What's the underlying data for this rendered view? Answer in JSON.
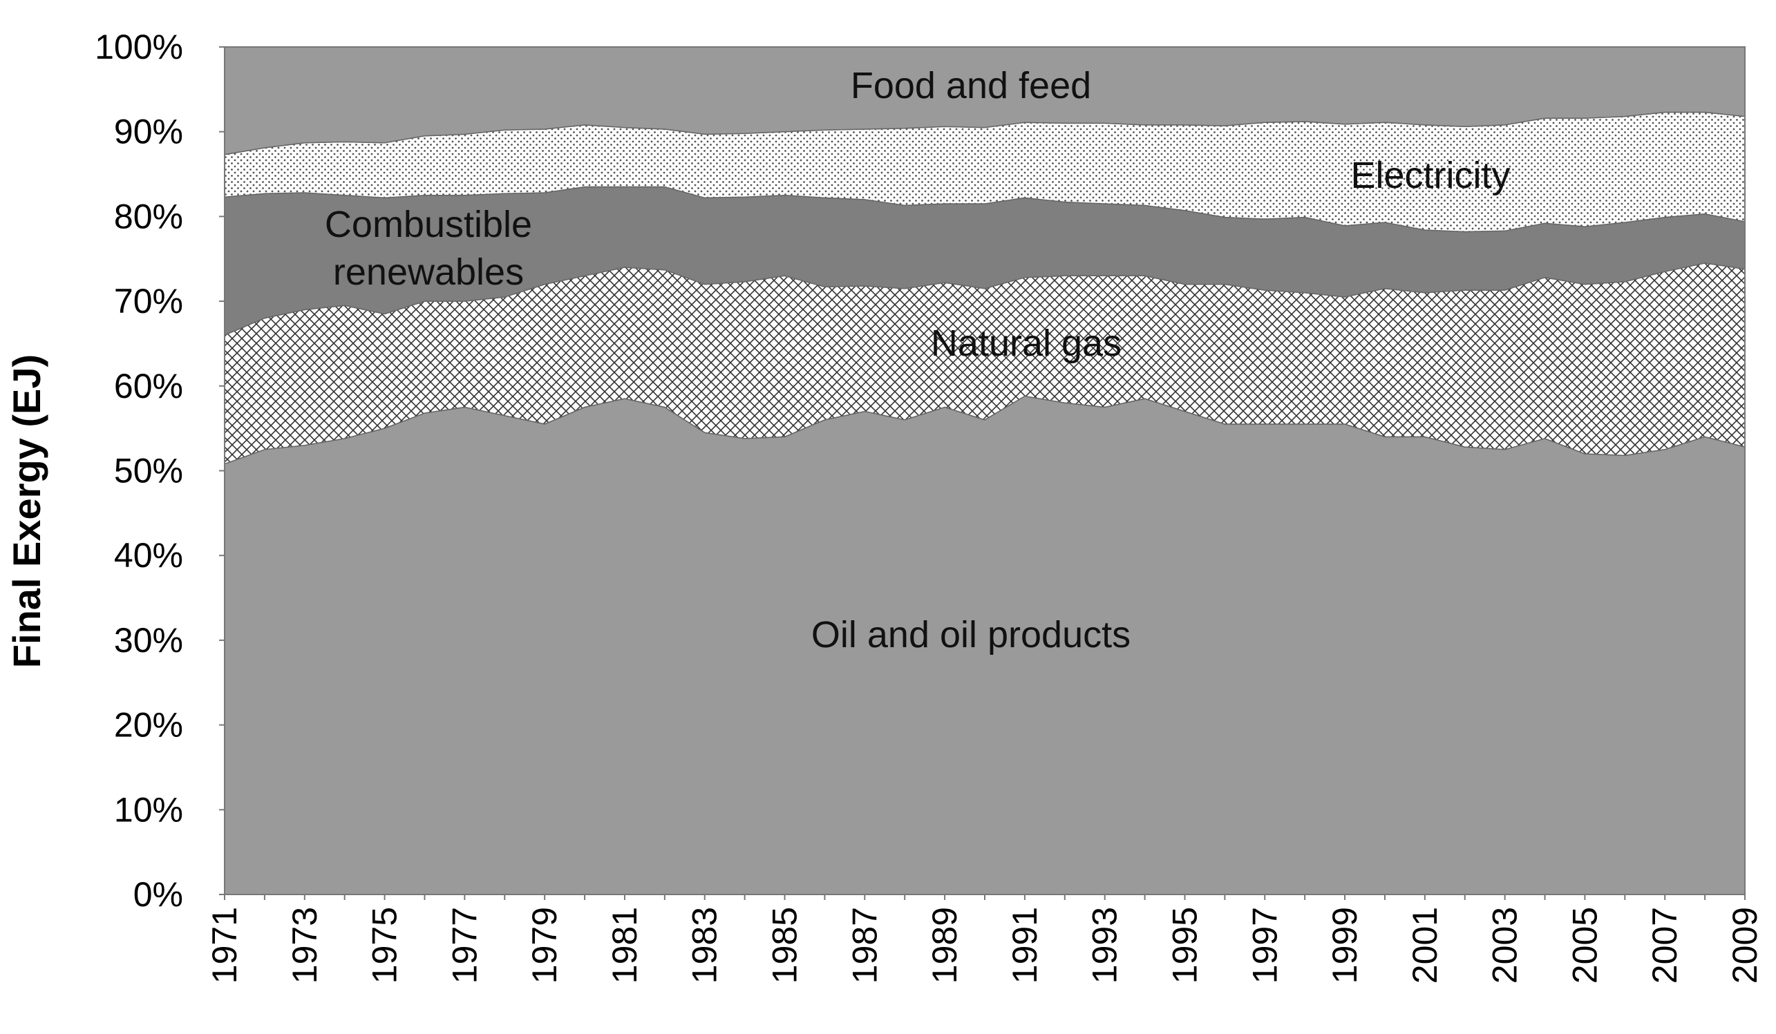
{
  "chart_data": {
    "type": "area",
    "stacked": true,
    "percent": true,
    "title": "",
    "xlabel": "",
    "ylabel": "Final Exergy (EJ)",
    "ylim": [
      0,
      100
    ],
    "yticks": [
      "0%",
      "10%",
      "20%",
      "30%",
      "40%",
      "50%",
      "60%",
      "70%",
      "80%",
      "90%",
      "100%"
    ],
    "x": [
      1971,
      1972,
      1973,
      1974,
      1975,
      1976,
      1977,
      1978,
      1979,
      1980,
      1981,
      1982,
      1983,
      1984,
      1985,
      1986,
      1987,
      1988,
      1989,
      1990,
      1991,
      1992,
      1993,
      1994,
      1995,
      1996,
      1997,
      1998,
      1999,
      2000,
      2001,
      2002,
      2003,
      2004,
      2005,
      2006,
      2007,
      2008,
      2009
    ],
    "xticks": [
      "1971",
      "1973",
      "1975",
      "1977",
      "1979",
      "1981",
      "1983",
      "1985",
      "1987",
      "1989",
      "1991",
      "1993",
      "1995",
      "1997",
      "1999",
      "2001",
      "2003",
      "2005",
      "2007",
      "2009"
    ],
    "series": [
      {
        "name": "Oil and oil products",
        "color": "#9a9a9a",
        "pattern": "solid",
        "label": "Oil and oil products",
        "values": [
          50.8,
          52.5,
          53.0,
          53.8,
          55.0,
          56.8,
          57.5,
          56.5,
          55.5,
          57.5,
          58.5,
          57.5,
          54.5,
          53.8,
          54.0,
          56.0,
          57.0,
          56.0,
          57.5,
          56.0,
          58.8,
          58.0,
          57.5,
          58.5,
          57.0,
          55.5,
          55.5,
          55.5,
          55.5,
          54.0,
          54.0,
          52.8,
          52.5,
          53.8,
          52.0,
          51.8,
          52.5,
          54.0,
          52.8
        ]
      },
      {
        "name": "Natural gas",
        "color": "#ffffff",
        "pattern": "crosshatch",
        "label": "Natural gas",
        "values": [
          15.2,
          15.5,
          16.0,
          15.7,
          13.5,
          13.2,
          12.5,
          14.0,
          16.5,
          15.5,
          15.5,
          16.2,
          17.5,
          18.5,
          19.0,
          15.7,
          14.8,
          15.5,
          14.7,
          15.5,
          14.0,
          15.0,
          15.5,
          14.5,
          15.0,
          16.5,
          15.8,
          15.5,
          15.0,
          17.5,
          17.0,
          18.5,
          18.8,
          19.0,
          20.0,
          20.5,
          21.0,
          20.5,
          21.0
        ]
      },
      {
        "name": "Combustible renewables",
        "color": "#7f7f7f",
        "pattern": "solid",
        "label": "Combustible renewables",
        "values": [
          16.3,
          14.7,
          13.8,
          13.0,
          13.7,
          12.5,
          12.5,
          12.2,
          10.8,
          10.5,
          9.5,
          9.8,
          10.2,
          10.0,
          9.5,
          10.5,
          10.2,
          9.8,
          9.3,
          10.0,
          9.4,
          8.7,
          8.5,
          8.3,
          8.7,
          7.9,
          8.4,
          8.9,
          8.4,
          7.8,
          7.4,
          6.9,
          7.0,
          6.4,
          6.8,
          7.0,
          6.4,
          5.8,
          5.6
        ]
      },
      {
        "name": "Electricity",
        "color": "#ffffff",
        "pattern": "dots",
        "label": "Electricity",
        "values": [
          5.0,
          5.4,
          5.9,
          6.3,
          6.5,
          7.0,
          7.2,
          7.5,
          7.5,
          7.3,
          7.0,
          6.8,
          7.5,
          7.5,
          7.5,
          8.0,
          8.3,
          9.1,
          9.1,
          9.0,
          8.9,
          9.3,
          9.5,
          9.5,
          10.1,
          10.8,
          11.4,
          11.3,
          12.0,
          11.8,
          12.4,
          12.4,
          12.5,
          12.4,
          12.8,
          12.5,
          12.4,
          12.0,
          12.4
        ]
      },
      {
        "name": "Food and feed",
        "color": "#9a9a9a",
        "pattern": "solid",
        "label": "Food and feed",
        "values": [
          12.7,
          11.9,
          11.3,
          11.2,
          11.3,
          10.5,
          10.3,
          9.8,
          9.7,
          9.2,
          9.5,
          9.7,
          10.3,
          10.2,
          10.0,
          9.8,
          9.7,
          9.6,
          9.4,
          9.5,
          8.9,
          9.0,
          9.0,
          9.2,
          9.2,
          9.3,
          8.9,
          8.8,
          9.1,
          8.9,
          9.2,
          9.4,
          9.2,
          8.4,
          8.4,
          8.2,
          7.7,
          7.7,
          8.2
        ]
      }
    ]
  }
}
